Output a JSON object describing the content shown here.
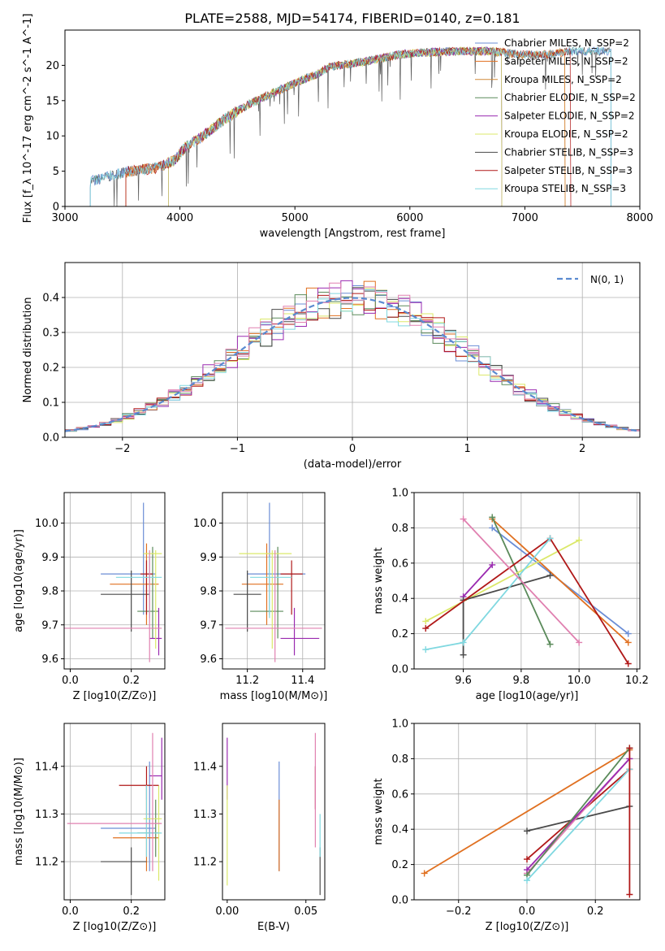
{
  "colors": [
    "#6b8ed6",
    "#e07020",
    "#d08a3a",
    "#5a8a5a",
    "#9a2ab0",
    "#dbe86a",
    "#4a4a4a",
    "#b01818",
    "#80d8e0",
    "#e080b0"
  ],
  "chart_data": [
    {
      "id": "spectrum",
      "type": "line",
      "title": "PLATE=2588, MJD=54174, FIBERID=0140, z=0.181",
      "xlabel": "wavelength [Angstrom, rest frame]",
      "ylabel": "Flux [f_λ 10^-17 erg cm^-2 s^-1 A^-1]",
      "xlim": [
        3000,
        8000
      ],
      "ylim": [
        0,
        25
      ],
      "xticks": [
        "3000",
        "4000",
        "5000",
        "6000",
        "7000",
        "8000"
      ],
      "yticks": [
        "0",
        "5",
        "10",
        "15",
        "20"
      ],
      "grid": false,
      "legend_position": "top-right",
      "continuum_x": [
        3220,
        3500,
        3800,
        3950,
        4050,
        4200,
        4400,
        4600,
        4800,
        5000,
        5200,
        5300,
        5600,
        5900,
        6100,
        6400,
        6700,
        7000,
        7200,
        7400
      ],
      "continuum_y": [
        3.5,
        4.8,
        5.5,
        6.5,
        8.5,
        10.0,
        12.5,
        14.5,
        16.0,
        17.5,
        18.8,
        19.8,
        20.5,
        21.5,
        21.8,
        22.0,
        22.0,
        21.5,
        21.5,
        22.0
      ],
      "series": [
        {
          "name": "Chabrier MILES, N_SSP=2",
          "color_index": 0
        },
        {
          "name": "Salpeter MILES, N_SSP=2",
          "color_index": 1
        },
        {
          "name": "Kroupa MILES, N_SSP=2",
          "color_index": 2
        },
        {
          "name": "Chabrier ELODIE, N_SSP=2",
          "color_index": 3
        },
        {
          "name": "Salpeter ELODIE, N_SSP=2",
          "color_index": 4
        },
        {
          "name": "Kroupa ELODIE, N_SSP=2",
          "color_index": 5
        },
        {
          "name": "Chabrier STELIB, N_SSP=3",
          "color_index": 6
        },
        {
          "name": "Salpeter STELIB, N_SSP=3",
          "color_index": 7
        },
        {
          "name": "Kroupa STELIB, N_SSP=3",
          "color_index": 8
        }
      ],
      "series_ranges": [
        [
          3220,
          7750
        ],
        [
          3530,
          7350
        ],
        [
          3530,
          7350
        ],
        [
          3900,
          6800
        ],
        [
          3900,
          6800
        ],
        [
          3900,
          6800
        ],
        [
          3220,
          7750
        ],
        [
          3530,
          7400
        ],
        [
          3220,
          7750
        ]
      ]
    },
    {
      "id": "residuals",
      "type": "line",
      "xlabel": "(data-model)/error",
      "ylabel": "Normed distribution",
      "xlim": [
        -2.5,
        2.5
      ],
      "ylim": [
        0,
        0.5
      ],
      "xticks": [
        "−2",
        "−1",
        "0",
        "1",
        "2"
      ],
      "yticks": [
        "0.0",
        "0.1",
        "0.2",
        "0.3",
        "0.4"
      ],
      "grid": true,
      "legend": "N(0, 1)",
      "legend_position": "top-right"
    },
    {
      "id": "z-age",
      "type": "scatter",
      "xlabel": "Z [log10(Z/Z⊙)]",
      "ylabel": "age [log10(age/yr)]",
      "xlim": [
        -0.02,
        0.31
      ],
      "ylim": [
        9.57,
        10.09
      ],
      "xticks": [
        "0.0",
        "0.2"
      ],
      "yticks": [
        "9.6",
        "9.7",
        "9.8",
        "9.9",
        "10.0"
      ],
      "grid": true,
      "points": [
        {
          "c": 0,
          "x": 0.24,
          "y": 9.85,
          "xlo": 0.1,
          "xhi": 0.28,
          "ylo": 9.73,
          "yhi": 10.06
        },
        {
          "c": 1,
          "x": 0.25,
          "y": 9.82,
          "xlo": 0.13,
          "xhi": 0.29,
          "ylo": 9.7,
          "yhi": 9.94
        },
        {
          "c": 3,
          "x": 0.27,
          "y": 9.74,
          "xlo": 0.22,
          "xhi": 0.29,
          "ylo": 9.66,
          "yhi": 9.93
        },
        {
          "c": 4,
          "x": 0.29,
          "y": 9.66,
          "xlo": 0.26,
          "xhi": 0.3,
          "ylo": 9.61,
          "yhi": 9.75
        },
        {
          "c": 5,
          "x": 0.28,
          "y": 9.91,
          "xlo": 0.24,
          "xhi": 0.3,
          "ylo": 9.63,
          "yhi": 9.92
        },
        {
          "c": 6,
          "x": 0.2,
          "y": 9.79,
          "xlo": 0.1,
          "xhi": 0.26,
          "ylo": 9.68,
          "yhi": 9.86
        },
        {
          "c": 7,
          "x": 0.25,
          "y": 9.85,
          "xlo": 0.23,
          "xhi": 0.27,
          "ylo": 9.73,
          "yhi": 9.89
        },
        {
          "c": 8,
          "x": 0.26,
          "y": 9.84,
          "xlo": 0.15,
          "xhi": 0.3,
          "ylo": 9.72,
          "yhi": 9.9
        },
        {
          "c": 9,
          "x": 0.26,
          "y": 9.69,
          "xlo": -0.02,
          "xhi": 0.3,
          "ylo": 9.59,
          "yhi": 9.92
        }
      ]
    },
    {
      "id": "mass-age",
      "type": "scatter",
      "xlabel": "mass [log10(M/M⊙)]",
      "ylabel": "",
      "xlim": [
        11.11,
        11.48
      ],
      "ylim": [
        9.57,
        10.09
      ],
      "xticks": [
        "11.2",
        "11.4"
      ],
      "yticks": [
        "9.6",
        "9.7",
        "9.8",
        "9.9",
        "10.0"
      ],
      "grid": true,
      "points": [
        {
          "c": 0,
          "x": 11.28,
          "y": 9.85,
          "xlo": 11.2,
          "xhi": 11.41,
          "ylo": 9.73,
          "yhi": 10.06
        },
        {
          "c": 1,
          "x": 11.27,
          "y": 9.82,
          "xlo": 11.18,
          "xhi": 11.33,
          "ylo": 9.7,
          "yhi": 9.94
        },
        {
          "c": 3,
          "x": 11.31,
          "y": 9.74,
          "xlo": 11.21,
          "xhi": 11.33,
          "ylo": 9.66,
          "yhi": 9.93
        },
        {
          "c": 4,
          "x": 11.37,
          "y": 9.66,
          "xlo": 11.32,
          "xhi": 11.46,
          "ylo": 9.61,
          "yhi": 9.75
        },
        {
          "c": 5,
          "x": 11.29,
          "y": 9.91,
          "xlo": 11.17,
          "xhi": 11.36,
          "ylo": 9.63,
          "yhi": 9.92
        },
        {
          "c": 6,
          "x": 11.2,
          "y": 9.79,
          "xlo": 11.15,
          "xhi": 11.25,
          "ylo": 9.68,
          "yhi": 9.86
        },
        {
          "c": 7,
          "x": 11.36,
          "y": 9.85,
          "xlo": 11.32,
          "xhi": 11.4,
          "ylo": 9.73,
          "yhi": 9.89
        },
        {
          "c": 8,
          "x": 11.28,
          "y": 9.84,
          "xlo": 11.21,
          "xhi": 11.36,
          "ylo": 9.72,
          "yhi": 9.9
        },
        {
          "c": 9,
          "x": 11.3,
          "y": 9.69,
          "xlo": 11.12,
          "xhi": 11.47,
          "ylo": 9.59,
          "yhi": 9.92
        }
      ]
    },
    {
      "id": "age-weight",
      "type": "line",
      "xlabel": "age [log10(age/yr)]",
      "ylabel": "mass weight",
      "xlim": [
        9.43,
        10.21
      ],
      "ylim": [
        0,
        1
      ],
      "xticks": [
        "9.6",
        "9.8",
        "10.0",
        "10.2"
      ],
      "yticks": [
        "0.0",
        "0.2",
        "0.4",
        "0.6",
        "0.8",
        "1.0"
      ],
      "grid": true,
      "lines": [
        {
          "c": 0,
          "pts": [
            [
              9.7,
              0.8
            ],
            [
              10.17,
              0.2
            ]
          ]
        },
        {
          "c": 1,
          "pts": [
            [
              9.7,
              0.85
            ],
            [
              10.17,
              0.15
            ]
          ]
        },
        {
          "c": 3,
          "pts": [
            [
              9.7,
              0.86
            ],
            [
              9.9,
              0.14
            ]
          ]
        },
        {
          "c": 4,
          "pts": [
            [
              9.6,
              0.41
            ],
            [
              9.7,
              0.59
            ]
          ]
        },
        {
          "c": 5,
          "pts": [
            [
              9.47,
              0.27
            ],
            [
              10.0,
              0.73
            ]
          ]
        },
        {
          "c": 6,
          "pts": [
            [
              9.6,
              0.08
            ],
            [
              9.6,
              0.39
            ],
            [
              9.9,
              0.53
            ]
          ]
        },
        {
          "c": 7,
          "pts": [
            [
              9.47,
              0.23
            ],
            [
              9.9,
              0.74
            ],
            [
              10.17,
              0.03
            ]
          ]
        },
        {
          "c": 8,
          "pts": [
            [
              9.47,
              0.11
            ],
            [
              9.6,
              0.15
            ],
            [
              9.9,
              0.74
            ]
          ]
        },
        {
          "c": 9,
          "pts": [
            [
              9.6,
              0.85
            ],
            [
              10.0,
              0.15
            ]
          ]
        }
      ]
    },
    {
      "id": "z-mass",
      "type": "scatter",
      "xlabel": "Z [log10(Z/Z⊙)]",
      "ylabel": "mass [log10(M/M⊙)]",
      "xlim": [
        -0.02,
        0.31
      ],
      "ylim": [
        11.12,
        11.49
      ],
      "xticks": [
        "0.0",
        "0.2"
      ],
      "yticks": [
        "11.2",
        "11.3",
        "11.4"
      ],
      "grid": true,
      "points": [
        {
          "c": 0,
          "x": 0.26,
          "y": 11.27,
          "xlo": 0.1,
          "xhi": 0.28,
          "ylo": 11.18,
          "yhi": 11.41
        },
        {
          "c": 1,
          "x": 0.25,
          "y": 11.25,
          "xlo": 0.14,
          "xhi": 0.29,
          "ylo": 11.18,
          "yhi": 11.33
        },
        {
          "c": 3,
          "x": 0.28,
          "y": 11.26,
          "xlo": 0.22,
          "xhi": 0.29,
          "ylo": 11.21,
          "yhi": 11.33
        },
        {
          "c": 4,
          "x": 0.3,
          "y": 11.38,
          "xlo": 0.26,
          "xhi": 0.3,
          "ylo": 11.33,
          "yhi": 11.46
        },
        {
          "c": 5,
          "x": 0.29,
          "y": 11.29,
          "xlo": 0.24,
          "xhi": 0.3,
          "ylo": 11.16,
          "yhi": 11.36
        },
        {
          "c": 6,
          "x": 0.2,
          "y": 11.2,
          "xlo": 0.1,
          "xhi": 0.25,
          "ylo": 11.13,
          "yhi": 11.23
        },
        {
          "c": 7,
          "x": 0.25,
          "y": 11.36,
          "xlo": 0.16,
          "xhi": 0.29,
          "ylo": 11.33,
          "yhi": 11.4
        },
        {
          "c": 8,
          "x": 0.25,
          "y": 11.26,
          "xlo": 0.16,
          "xhi": 0.3,
          "ylo": 11.21,
          "yhi": 11.36
        },
        {
          "c": 9,
          "x": 0.27,
          "y": 11.28,
          "xlo": -0.01,
          "xhi": 0.3,
          "ylo": 11.18,
          "yhi": 11.47
        }
      ]
    },
    {
      "id": "ebv-mass",
      "type": "scatter",
      "xlabel": "E(B-V)",
      "ylabel": "",
      "xlim": [
        -0.003,
        0.062
      ],
      "ylim": [
        11.12,
        11.49
      ],
      "xticks": [
        "0.00",
        "0.05"
      ],
      "yticks": [
        "11.2",
        "11.3",
        "11.4"
      ],
      "grid": false,
      "points": [
        {
          "c": 0,
          "x": 0.033,
          "y": 11.27,
          "ylo": 11.18,
          "yhi": 11.41
        },
        {
          "c": 1,
          "x": 0.033,
          "y": 11.25,
          "ylo": 11.18,
          "yhi": 11.33
        },
        {
          "c": 4,
          "x": 0.0,
          "y": 11.38,
          "ylo": 11.33,
          "yhi": 11.46
        },
        {
          "c": 5,
          "x": 0.0,
          "y": 11.25,
          "ylo": 11.15,
          "yhi": 11.36
        },
        {
          "c": 6,
          "x": 0.059,
          "y": 11.2,
          "ylo": 11.13,
          "yhi": 11.23
        },
        {
          "c": 7,
          "x": 0.056,
          "y": 11.36,
          "ylo": 11.31,
          "yhi": 11.4
        },
        {
          "c": 8,
          "x": 0.059,
          "y": 11.25,
          "ylo": 11.21,
          "yhi": 11.3
        },
        {
          "c": 9,
          "x": 0.056,
          "y": 11.3,
          "ylo": 11.23,
          "yhi": 11.47
        }
      ]
    },
    {
      "id": "z-weight",
      "type": "line",
      "xlabel": "Z [log10(Z/Z⊙)]",
      "ylabel": "mass weight",
      "xlim": [
        -0.33,
        0.33
      ],
      "ylim": [
        0,
        1
      ],
      "xticks": [
        "−0.2",
        "0.0",
        "0.2"
      ],
      "yticks": [
        "0.0",
        "0.2",
        "0.4",
        "0.6",
        "0.8",
        "1.0"
      ],
      "grid": true,
      "lines": [
        {
          "c": 1,
          "pts": [
            [
              -0.3,
              0.15
            ],
            [
              0.3,
              0.85
            ]
          ]
        },
        {
          "c": 6,
          "pts": [
            [
              0.0,
              0.39
            ],
            [
              0.3,
              0.53
            ]
          ]
        },
        {
          "c": 7,
          "pts": [
            [
              0.0,
              0.23
            ],
            [
              0.3,
              0.74
            ]
          ]
        },
        {
          "c": 9,
          "pts": [
            [
              0.0,
              0.15
            ],
            [
              0.3,
              0.8
            ]
          ]
        },
        {
          "c": 4,
          "pts": [
            [
              0.0,
              0.17
            ],
            [
              0.3,
              0.8
            ]
          ]
        },
        {
          "c": 3,
          "pts": [
            [
              0.0,
              0.14
            ],
            [
              0.3,
              0.86
            ]
          ]
        },
        {
          "c": 8,
          "pts": [
            [
              0.0,
              0.11
            ],
            [
              0.3,
              0.74
            ]
          ]
        },
        {
          "c": 7,
          "pts": [
            [
              0.3,
              0.03
            ],
            [
              0.3,
              0.86
            ]
          ]
        }
      ]
    }
  ]
}
